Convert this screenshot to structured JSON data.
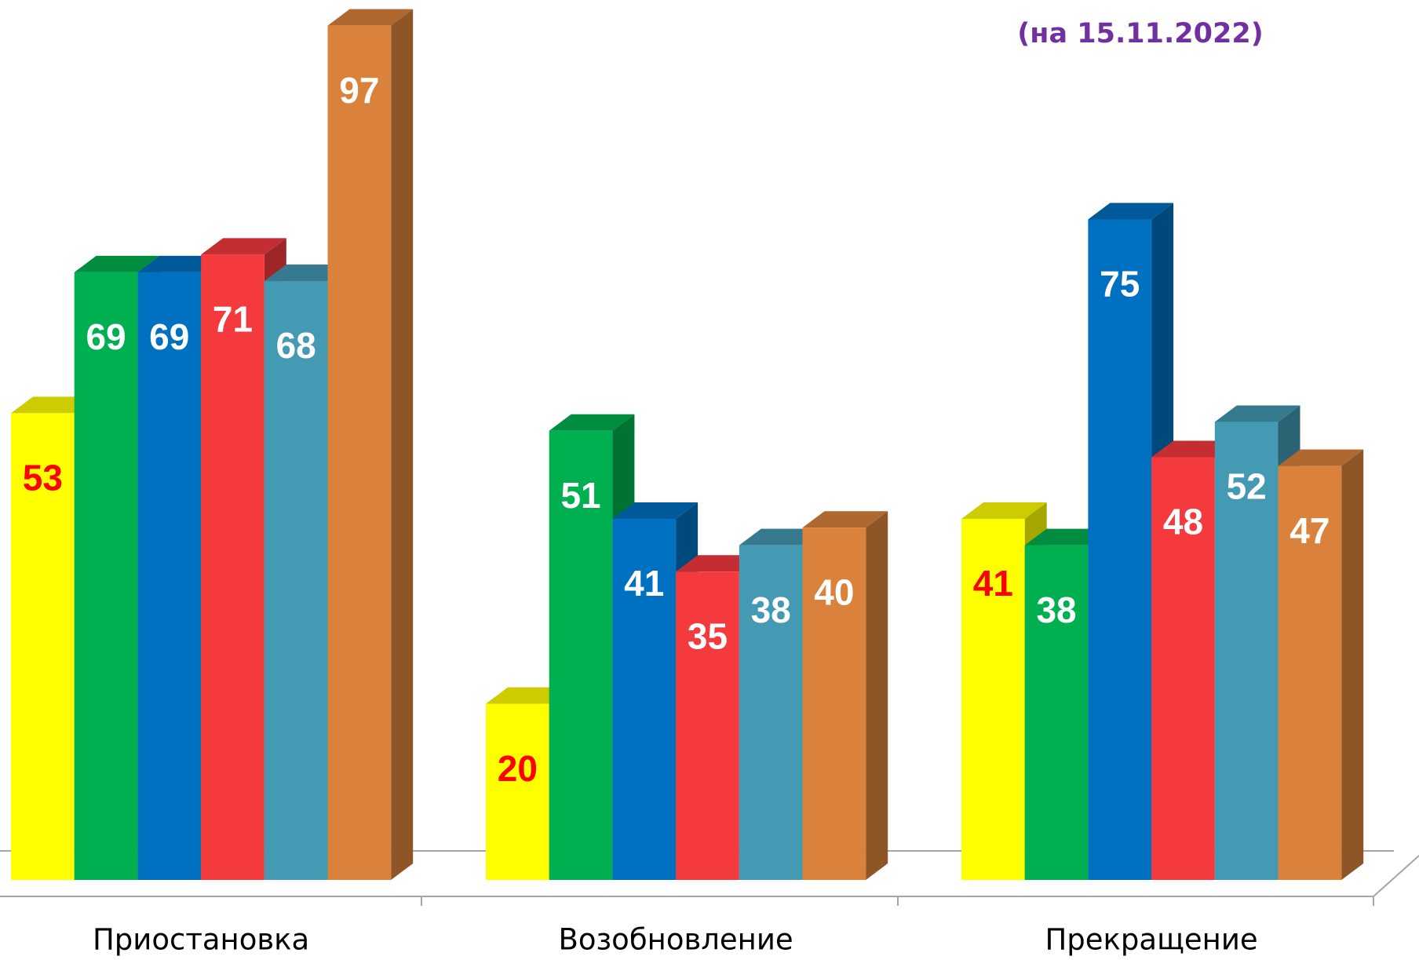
{
  "chart_data": {
    "type": "bar3d",
    "subtitle": "(на 15.11.2022)",
    "categories": [
      "Приостановка",
      "Возобновление",
      "Прекращение"
    ],
    "series": [
      {
        "color": "#ffff00",
        "label_color": "#ff0000",
        "values": [
          53,
          20,
          41
        ]
      },
      {
        "color": "#00b050",
        "label_color": "#ffffff",
        "values": [
          69,
          51,
          38
        ]
      },
      {
        "color": "#0070c0",
        "label_color": "#ffffff",
        "values": [
          69,
          41,
          75
        ]
      },
      {
        "color": "#f53a3e",
        "label_color": "#ffffff",
        "values": [
          71,
          35,
          48
        ]
      },
      {
        "color": "#4499b3",
        "label_color": "#ffffff",
        "values": [
          68,
          38,
          52
        ]
      },
      {
        "color": "#da823c",
        "label_color": "#ffffff",
        "values": [
          97,
          40,
          47
        ]
      }
    ],
    "ylim": [
      0,
      100
    ]
  }
}
